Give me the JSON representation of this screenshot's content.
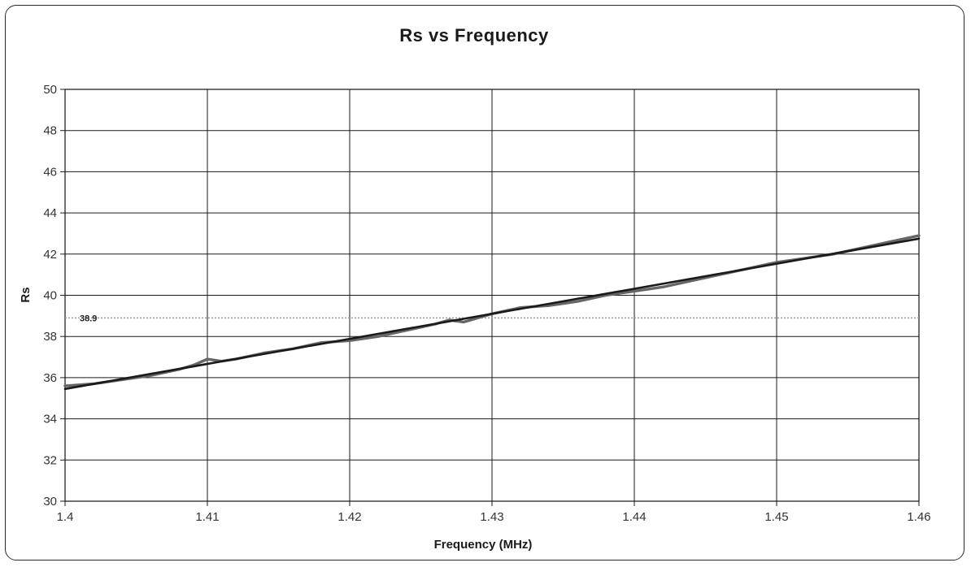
{
  "chart_data": {
    "type": "line",
    "title": "Rs vs Frequency",
    "xlabel": "Frequency (MHz)",
    "ylabel": "Rs",
    "xlim": [
      1.4,
      1.46
    ],
    "ylim": [
      30,
      50
    ],
    "x_ticks": [
      "1.4",
      "1.41",
      "1.42",
      "1.43",
      "1.44",
      "1.45",
      "1.46"
    ],
    "y_ticks": [
      "30",
      "32",
      "34",
      "36",
      "38",
      "40",
      "42",
      "44",
      "46",
      "48",
      "50"
    ],
    "grid": true,
    "legend": "none",
    "series": [
      {
        "color": "#666666",
        "points": [
          [
            1.4,
            35.6
          ],
          [
            1.402,
            35.7
          ],
          [
            1.404,
            35.9
          ],
          [
            1.406,
            36.1
          ],
          [
            1.408,
            36.4
          ],
          [
            1.409,
            36.6
          ],
          [
            1.41,
            36.9
          ],
          [
            1.411,
            36.8
          ],
          [
            1.412,
            36.9
          ],
          [
            1.414,
            37.2
          ],
          [
            1.416,
            37.4
          ],
          [
            1.418,
            37.7
          ],
          [
            1.42,
            37.8
          ],
          [
            1.422,
            38.0
          ],
          [
            1.424,
            38.3
          ],
          [
            1.426,
            38.6
          ],
          [
            1.427,
            38.8
          ],
          [
            1.428,
            38.7
          ],
          [
            1.429,
            38.9
          ],
          [
            1.43,
            39.1
          ],
          [
            1.432,
            39.4
          ],
          [
            1.434,
            39.5
          ],
          [
            1.436,
            39.7
          ],
          [
            1.438,
            40.0
          ],
          [
            1.44,
            40.2
          ],
          [
            1.442,
            40.4
          ],
          [
            1.444,
            40.7
          ],
          [
            1.446,
            41.0
          ],
          [
            1.448,
            41.3
          ],
          [
            1.45,
            41.6
          ],
          [
            1.452,
            41.8
          ],
          [
            1.454,
            42.0
          ],
          [
            1.456,
            42.3
          ],
          [
            1.458,
            42.6
          ],
          [
            1.46,
            42.9
          ]
        ]
      },
      {
        "color": "#1a1a1a",
        "points": [
          [
            1.4,
            35.45
          ],
          [
            1.46,
            42.75
          ]
        ]
      }
    ],
    "reference_line": {
      "value": 38.9,
      "label": "38.9",
      "style": "dotted",
      "color": "#9a9a9a"
    }
  }
}
